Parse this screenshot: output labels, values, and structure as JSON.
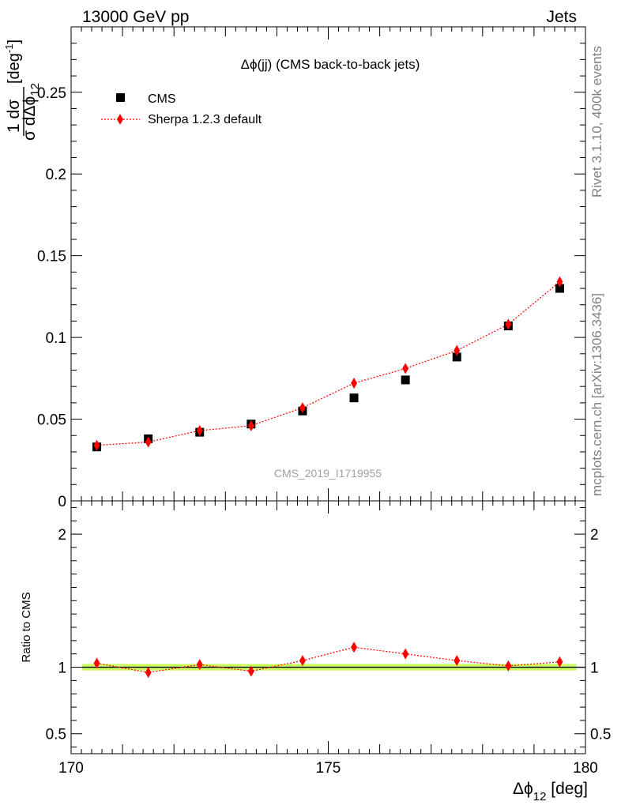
{
  "header": {
    "energy_label": "13000 GeV pp",
    "group_label": "Jets"
  },
  "side_labels": {
    "rivet": "Rivet 3.1.10,  400k events",
    "mcplots": "mcplots.cern.ch [arXiv:1306.3436]"
  },
  "chart_data": [
    {
      "type": "scatter",
      "title": "Δϕ(jj) (CMS back-to-back jets)",
      "watermark": "CMS_2019_I1719955",
      "ylabel_parts": {
        "num": "1 dσ",
        "den": "σ dΔϕ",
        "den_sub": "12",
        "unit": "[deg",
        "unit_sup": "-1",
        "unit_close": "]"
      },
      "xlim": [
        170,
        180
      ],
      "ylim": [
        0,
        0.29
      ],
      "yticks": [
        0,
        0.05,
        0.1,
        0.15,
        0.2,
        0.25
      ],
      "ytick_labels": [
        "0",
        "0.05",
        "0.1",
        "0.15",
        "0.2",
        "0.25"
      ],
      "x": [
        170.5,
        171.5,
        172.5,
        173.5,
        174.5,
        175.5,
        176.5,
        177.5,
        178.5,
        179.5
      ],
      "series": [
        {
          "name": "CMS",
          "values": [
            0.033,
            0.038,
            0.042,
            0.047,
            0.055,
            0.063,
            0.074,
            0.088,
            0.107,
            0.13
          ],
          "color": "#000000",
          "marker": "square"
        },
        {
          "name": "Sherpa 1.2.3 default",
          "values": [
            0.034,
            0.036,
            0.043,
            0.046,
            0.057,
            0.072,
            0.081,
            0.092,
            0.108,
            0.134
          ],
          "errors": [
            0.0015,
            0.0015,
            0.0015,
            0.0015,
            0.0018,
            0.0018,
            0.0018,
            0.002,
            0.0025,
            0.0028
          ],
          "color": "#ff0000",
          "marker": "diamond"
        }
      ],
      "legend": "top-left"
    },
    {
      "type": "scatter",
      "ylabel": "Ratio to CMS",
      "xlabel_parts": {
        "main": "Δϕ",
        "sub": "12",
        "unit": " [deg]"
      },
      "xlim": [
        170,
        180
      ],
      "ylim": [
        0.35,
        2.25
      ],
      "yticks": [
        0.5,
        1,
        2
      ],
      "ytick_labels": [
        "0.5",
        "1",
        "2"
      ],
      "xticks": [
        170,
        175,
        180
      ],
      "xtick_labels": [
        "170",
        "175",
        "180"
      ],
      "x": [
        170.5,
        171.5,
        172.5,
        173.5,
        174.5,
        175.5,
        176.5,
        177.5,
        178.5,
        179.5
      ],
      "reference_band": {
        "center": 1.0,
        "halfwidth": 0.025,
        "color": "#ccff66"
      },
      "series": [
        {
          "name": "Sherpa 1.2.3 default",
          "values": [
            1.03,
            0.96,
            1.02,
            0.97,
            1.05,
            1.15,
            1.1,
            1.05,
            1.01,
            1.04
          ],
          "errors": [
            0.035,
            0.035,
            0.03,
            0.03,
            0.03,
            0.03,
            0.025,
            0.02,
            0.02,
            0.02
          ],
          "color": "#ff0000",
          "marker": "diamond"
        }
      ]
    }
  ]
}
